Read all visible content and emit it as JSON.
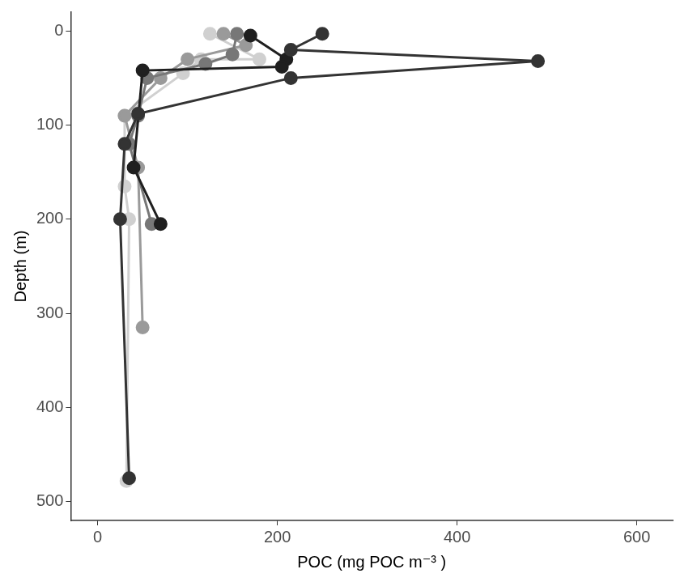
{
  "chart_data": {
    "type": "line",
    "x_label": "POC (mg POC m⁻³ )",
    "y_label": "Depth (m)",
    "xlim": [
      -30,
      640
    ],
    "xticks": [
      0,
      200,
      400,
      600
    ],
    "ylim": [
      -20,
      520
    ],
    "yticks": [
      0,
      100,
      200,
      300,
      400,
      500
    ],
    "y_reversed": true,
    "grid": false,
    "marker": "circle",
    "series": [
      {
        "color": "#333333",
        "x": [
          250,
          215,
          490,
          215,
          45,
          30,
          25,
          35
        ],
        "values": [
          3,
          20,
          32,
          50,
          88,
          120,
          200,
          475
        ]
      },
      {
        "color": "#1f1f1f",
        "x": [
          170,
          210,
          205,
          50,
          40,
          70
        ],
        "values": [
          5,
          30,
          38,
          42,
          145,
          205
        ]
      },
      {
        "color": "#777777",
        "x": [
          155,
          150,
          120,
          55,
          45,
          35,
          60
        ],
        "values": [
          3,
          25,
          35,
          50,
          90,
          120,
          205
        ]
      },
      {
        "color": "#9a9a9a",
        "x": [
          140,
          165,
          100,
          70,
          30,
          45,
          50
        ],
        "values": [
          3,
          15,
          30,
          50,
          90,
          145,
          315
        ]
      },
      {
        "color": "#d0d0d0",
        "x": [
          125,
          180,
          115,
          95,
          30,
          30,
          30,
          35,
          32
        ],
        "values": [
          3,
          30,
          30,
          45,
          90,
          120,
          165,
          200,
          478
        ]
      }
    ]
  }
}
